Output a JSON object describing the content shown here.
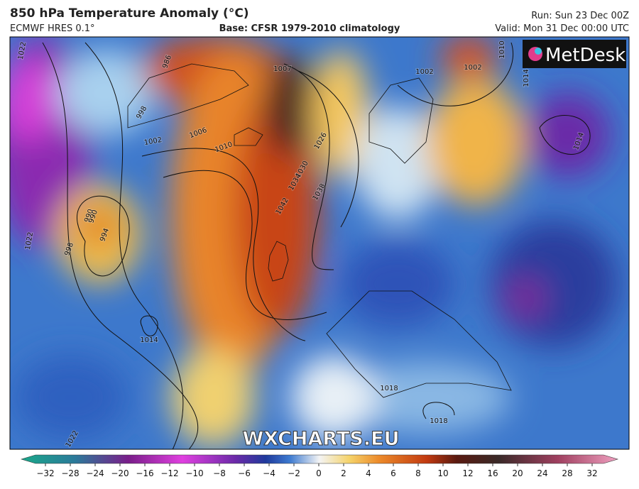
{
  "header": {
    "title": "850 hPa Temperature Anomaly (°C)",
    "model": "ECMWF HRES 0.1°",
    "base": "Base: CFSR 1979-2010 climatology",
    "run": "Run: Sun 23 Dec 00Z",
    "valid": "Valid: Mon 31 Dec 00:00 UTC"
  },
  "logo": "MetDesk",
  "watermark": "WXCHARTS.EU",
  "isobar_labels": [
    "1022",
    "986",
    "990",
    "998",
    "1002",
    "1006",
    "1010",
    "1007",
    "1026",
    "1030",
    "1034",
    "1038",
    "1042",
    "990",
    "994",
    "998",
    "1014",
    "1018",
    "1018",
    "1022",
    "1010",
    "1014",
    "1002",
    "1014",
    "1002",
    "1022"
  ],
  "colorbar": {
    "ticks": [
      {
        "value": -32,
        "label": "−32"
      },
      {
        "value": -28,
        "label": "−28"
      },
      {
        "value": -24,
        "label": "−24"
      },
      {
        "value": -20,
        "label": "−20"
      },
      {
        "value": -16,
        "label": "−16"
      },
      {
        "value": -12,
        "label": "−12"
      },
      {
        "value": -10,
        "label": "−10"
      },
      {
        "value": -8,
        "label": "−8"
      },
      {
        "value": -6,
        "label": "−6"
      },
      {
        "value": -4,
        "label": "−4"
      },
      {
        "value": -2,
        "label": "−2"
      },
      0,
      2,
      4,
      6,
      8,
      10,
      12,
      16,
      20,
      24,
      28,
      32
    ]
  }
}
